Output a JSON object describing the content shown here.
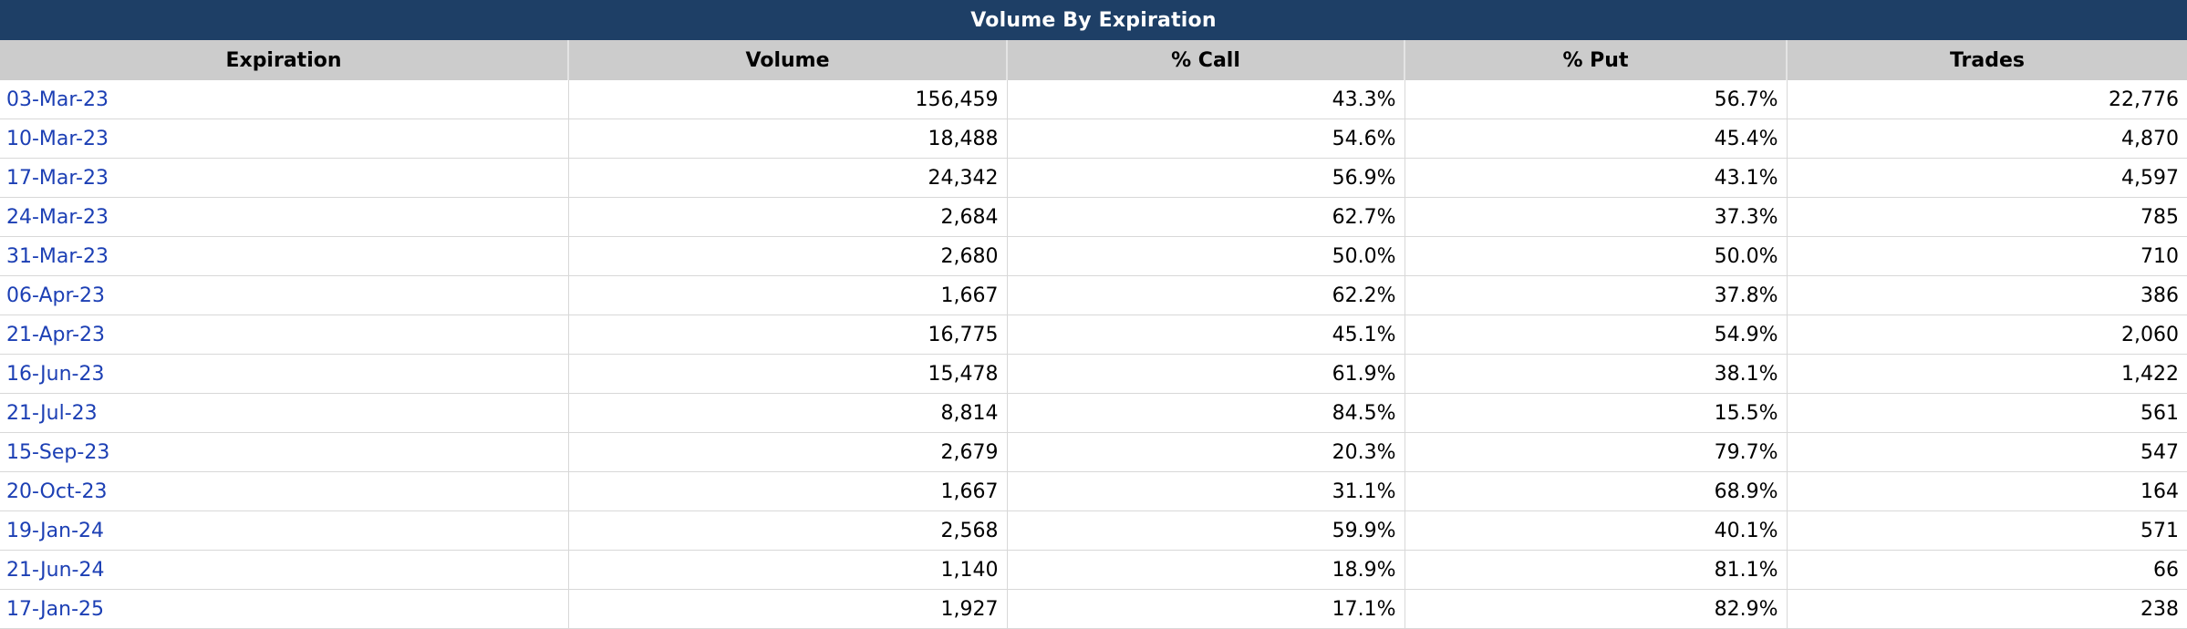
{
  "title": "Volume By Expiration",
  "columns": [
    "Expiration",
    "Volume",
    "% Call",
    "% Put",
    "Trades"
  ],
  "rows": [
    {
      "expiration": "03-Mar-23",
      "volume": "156,459",
      "pct_call": "43.3%",
      "pct_put": "56.7%",
      "trades": "22,776"
    },
    {
      "expiration": "10-Mar-23",
      "volume": "18,488",
      "pct_call": "54.6%",
      "pct_put": "45.4%",
      "trades": "4,870"
    },
    {
      "expiration": "17-Mar-23",
      "volume": "24,342",
      "pct_call": "56.9%",
      "pct_put": "43.1%",
      "trades": "4,597"
    },
    {
      "expiration": "24-Mar-23",
      "volume": "2,684",
      "pct_call": "62.7%",
      "pct_put": "37.3%",
      "trades": "785"
    },
    {
      "expiration": "31-Mar-23",
      "volume": "2,680",
      "pct_call": "50.0%",
      "pct_put": "50.0%",
      "trades": "710"
    },
    {
      "expiration": "06-Apr-23",
      "volume": "1,667",
      "pct_call": "62.2%",
      "pct_put": "37.8%",
      "trades": "386"
    },
    {
      "expiration": "21-Apr-23",
      "volume": "16,775",
      "pct_call": "45.1%",
      "pct_put": "54.9%",
      "trades": "2,060"
    },
    {
      "expiration": "16-Jun-23",
      "volume": "15,478",
      "pct_call": "61.9%",
      "pct_put": "38.1%",
      "trades": "1,422"
    },
    {
      "expiration": "21-Jul-23",
      "volume": "8,814",
      "pct_call": "84.5%",
      "pct_put": "15.5%",
      "trades": "561"
    },
    {
      "expiration": "15-Sep-23",
      "volume": "2,679",
      "pct_call": "20.3%",
      "pct_put": "79.7%",
      "trades": "547"
    },
    {
      "expiration": "20-Oct-23",
      "volume": "1,667",
      "pct_call": "31.1%",
      "pct_put": "68.9%",
      "trades": "164"
    },
    {
      "expiration": "19-Jan-24",
      "volume": "2,568",
      "pct_call": "59.9%",
      "pct_put": "40.1%",
      "trades": "571"
    },
    {
      "expiration": "21-Jun-24",
      "volume": "1,140",
      "pct_call": "18.9%",
      "pct_put": "81.1%",
      "trades": "66"
    },
    {
      "expiration": "17-Jan-25",
      "volume": "1,927",
      "pct_call": "17.1%",
      "pct_put": "82.9%",
      "trades": "238"
    }
  ],
  "colors": {
    "title_bg": "#1e3f66",
    "header_bg": "#cccccc",
    "link": "#1c3fb4"
  }
}
